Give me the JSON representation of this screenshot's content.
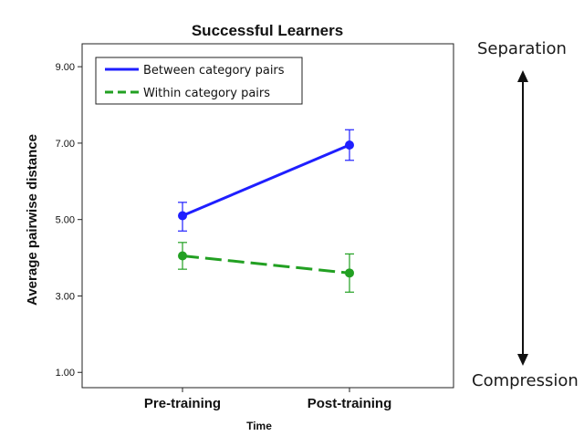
{
  "chart_data": {
    "type": "line",
    "title": "Successful Learners",
    "xlabel": "Time",
    "ylabel": "Average pairwise distance",
    "categories": [
      "Pre-training",
      "Post-training"
    ],
    "yticks": [
      "1.00",
      "3.00",
      "5.00",
      "7.00",
      "9.00"
    ],
    "ylim": [
      0.6,
      9.6
    ],
    "grid": false,
    "legend_position": "top-left",
    "series": [
      {
        "name": "Between category pairs",
        "values": [
          5.1,
          6.95
        ],
        "error_low": [
          4.7,
          6.55
        ],
        "error_high": [
          5.45,
          7.35
        ],
        "color": "#1f1fff",
        "style": "solid"
      },
      {
        "name": "Within category pairs",
        "values": [
          4.05,
          3.6
        ],
        "error_low": [
          3.7,
          3.1
        ],
        "error_high": [
          4.4,
          4.1
        ],
        "color": "#22a022",
        "style": "dashed"
      }
    ]
  },
  "annotations": {
    "top": "Separation",
    "bottom": "Compression"
  }
}
